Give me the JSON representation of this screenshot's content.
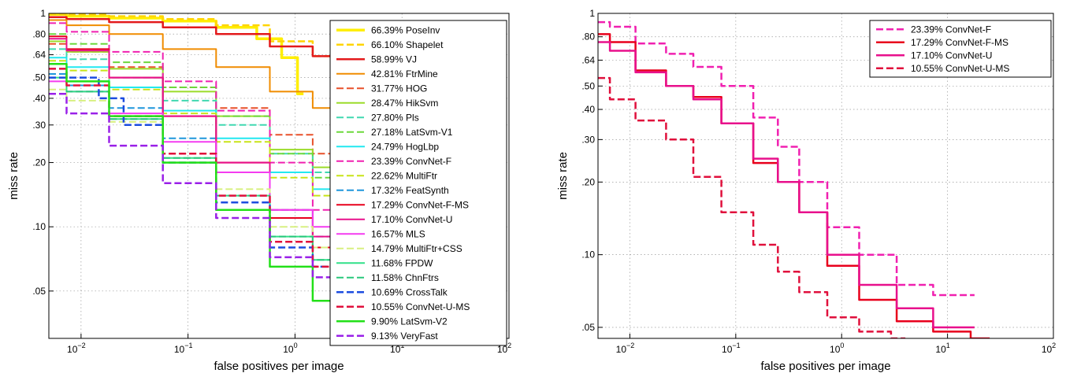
{
  "chart_data": [
    {
      "type": "line",
      "title": "",
      "xlabel": "false positives per image",
      "ylabel": "miss rate",
      "xscale": "log",
      "yscale": "log",
      "xlim": [
        0.005,
        100
      ],
      "ylim": [
        0.03,
        1
      ],
      "xticks": [
        {
          "value": 0.01,
          "base": "10",
          "exp": "−2"
        },
        {
          "value": 0.1,
          "base": "10",
          "exp": "−1"
        },
        {
          "value": 1,
          "base": "10",
          "exp": "0"
        },
        {
          "value": 10,
          "base": "10",
          "exp": "1"
        },
        {
          "value": 100,
          "base": "10",
          "exp": "2"
        }
      ],
      "yticks": [
        {
          "value": 1,
          "label": "1"
        },
        {
          "value": 0.8,
          "label": ".80"
        },
        {
          "value": 0.64,
          "label": ".64"
        },
        {
          "value": 0.5,
          "label": ".50"
        },
        {
          "value": 0.4,
          "label": ".40"
        },
        {
          "value": 0.3,
          "label": ".30"
        },
        {
          "value": 0.2,
          "label": ".20"
        },
        {
          "value": 0.1,
          "label": ".10"
        },
        {
          "value": 0.05,
          "label": ".05"
        }
      ],
      "grid": true,
      "legend_position": "right",
      "series": [
        {
          "name": "66.39% PoseInv",
          "color": "#ffee00",
          "dash": false,
          "width": 3.5,
          "x": [
            0.005,
            0.01,
            0.03,
            0.1,
            0.3,
            0.6,
            0.9,
            1.2
          ],
          "y": [
            0.99,
            0.97,
            0.95,
            0.92,
            0.86,
            0.76,
            0.62,
            0.42
          ]
        },
        {
          "name": "66.10% Shapelet",
          "color": "#ffd400",
          "dash": true,
          "width": 2.5,
          "x": [
            0.005,
            0.01,
            0.03,
            0.1,
            0.3,
            1,
            2,
            3.5
          ],
          "y": [
            0.995,
            0.985,
            0.97,
            0.94,
            0.88,
            0.74,
            0.63,
            0.56
          ]
        },
        {
          "name": "58.99% VJ",
          "color": "#e31a1c",
          "dash": false,
          "width": 2.5,
          "x": [
            0.005,
            0.01,
            0.03,
            0.1,
            0.3,
            1,
            2,
            3
          ],
          "y": [
            0.96,
            0.94,
            0.91,
            0.86,
            0.8,
            0.7,
            0.63,
            0.59
          ]
        },
        {
          "name": "42.81% FtrMine",
          "color": "#f08c00",
          "dash": false,
          "width": 2,
          "x": [
            0.005,
            0.01,
            0.03,
            0.1,
            0.3,
            1,
            2,
            3
          ],
          "y": [
            0.93,
            0.88,
            0.8,
            0.68,
            0.56,
            0.43,
            0.36,
            0.32
          ]
        },
        {
          "name": "31.77% HOG",
          "color": "#e8502a",
          "dash": true,
          "width": 2,
          "x": [
            0.005,
            0.01,
            0.03,
            0.1,
            0.3,
            1,
            2,
            3
          ],
          "y": [
            0.72,
            0.66,
            0.56,
            0.45,
            0.36,
            0.27,
            0.22,
            0.19
          ]
        },
        {
          "name": "28.47% HikSvm",
          "color": "#9cdc2a",
          "dash": false,
          "width": 2,
          "x": [
            0.005,
            0.01,
            0.03,
            0.1,
            0.3,
            1,
            2,
            3
          ],
          "y": [
            0.74,
            0.66,
            0.55,
            0.43,
            0.33,
            0.23,
            0.19,
            0.17
          ]
        },
        {
          "name": "27.80% Pls",
          "color": "#40d8b0",
          "dash": true,
          "width": 2,
          "x": [
            0.005,
            0.01,
            0.03,
            0.1,
            0.3,
            1,
            2,
            3
          ],
          "y": [
            0.68,
            0.61,
            0.5,
            0.39,
            0.3,
            0.22,
            0.18,
            0.16
          ]
        },
        {
          "name": "27.18% LatSvm-V1",
          "color": "#6cd83c",
          "dash": true,
          "width": 2,
          "x": [
            0.005,
            0.01,
            0.03,
            0.1,
            0.3,
            1,
            2,
            3
          ],
          "y": [
            0.8,
            0.72,
            0.59,
            0.45,
            0.33,
            0.22,
            0.17,
            0.15
          ]
        },
        {
          "name": "24.79% HogLbp",
          "color": "#22e8f0",
          "dash": false,
          "width": 2,
          "x": [
            0.005,
            0.01,
            0.03,
            0.1,
            0.3,
            1,
            2,
            3
          ],
          "y": [
            0.62,
            0.56,
            0.45,
            0.35,
            0.26,
            0.18,
            0.15,
            0.13
          ]
        },
        {
          "name": "23.39% ConvNet-F",
          "color": "#f020b0",
          "dash": true,
          "width": 2,
          "x": [
            0.005,
            0.01,
            0.03,
            0.1,
            0.3,
            1,
            2,
            3
          ],
          "y": [
            0.9,
            0.82,
            0.66,
            0.48,
            0.35,
            0.2,
            0.12,
            0.1
          ]
        },
        {
          "name": "22.62% MultiFtr",
          "color": "#c8e418",
          "dash": true,
          "width": 2,
          "x": [
            0.005,
            0.01,
            0.03,
            0.1,
            0.3,
            1,
            2,
            3
          ],
          "y": [
            0.6,
            0.54,
            0.44,
            0.34,
            0.25,
            0.17,
            0.14,
            0.12
          ]
        },
        {
          "name": "17.32% FeatSynth",
          "color": "#1f96dc",
          "dash": true,
          "width": 2,
          "x": [
            0.005,
            0.01,
            0.03,
            0.1,
            0.3,
            1,
            2,
            3
          ],
          "y": [
            0.52,
            0.46,
            0.36,
            0.26,
            0.18,
            0.12,
            0.09,
            0.08
          ]
        },
        {
          "name": "17.29% ConvNet-F-MS",
          "color": "#e8001c",
          "dash": false,
          "width": 2,
          "x": [
            0.005,
            0.01,
            0.03,
            0.1,
            0.3,
            1,
            2,
            3
          ],
          "y": [
            0.78,
            0.68,
            0.5,
            0.33,
            0.2,
            0.11,
            0.08,
            0.07
          ]
        },
        {
          "name": "17.10% ConvNet-U",
          "color": "#e8108c",
          "dash": false,
          "width": 2,
          "x": [
            0.005,
            0.01,
            0.03,
            0.1,
            0.3,
            1,
            2,
            3
          ],
          "y": [
            0.76,
            0.67,
            0.5,
            0.33,
            0.2,
            0.12,
            0.09,
            0.08
          ]
        },
        {
          "name": "16.57% MLS",
          "color": "#f43cf0",
          "dash": false,
          "width": 2,
          "x": [
            0.005,
            0.01,
            0.03,
            0.1,
            0.3,
            1,
            2,
            3
          ],
          "y": [
            0.48,
            0.43,
            0.34,
            0.25,
            0.18,
            0.12,
            0.1,
            0.09
          ]
        },
        {
          "name": "14.79% MultiFtr+CSS",
          "color": "#d8f080",
          "dash": true,
          "width": 2,
          "x": [
            0.005,
            0.01,
            0.03,
            0.1,
            0.3,
            1,
            2,
            3
          ],
          "y": [
            0.44,
            0.39,
            0.31,
            0.22,
            0.15,
            0.1,
            0.08,
            0.07
          ]
        },
        {
          "name": "11.68% FPDW",
          "color": "#30e088",
          "dash": false,
          "width": 2,
          "x": [
            0.005,
            0.01,
            0.03,
            0.1,
            0.3,
            1,
            2,
            3
          ],
          "y": [
            0.5,
            0.43,
            0.32,
            0.21,
            0.14,
            0.09,
            0.07,
            0.06
          ]
        },
        {
          "name": "11.58% ChnFtrs",
          "color": "#28c87c",
          "dash": true,
          "width": 2,
          "x": [
            0.005,
            0.01,
            0.03,
            0.1,
            0.3,
            1,
            2,
            3
          ],
          "y": [
            0.5,
            0.43,
            0.32,
            0.21,
            0.14,
            0.09,
            0.07,
            0.06
          ]
        },
        {
          "name": "10.69% CrossTalk",
          "color": "#1c4ce0",
          "dash": true,
          "width": 2.5,
          "x": [
            0.005,
            0.01,
            0.02,
            0.03,
            0.1,
            0.3,
            1,
            2,
            3
          ],
          "y": [
            0.5,
            0.5,
            0.4,
            0.3,
            0.2,
            0.13,
            0.08,
            0.065,
            0.055
          ]
        },
        {
          "name": "10.55% ConvNet-U-MS",
          "color": "#e0103c",
          "dash": true,
          "width": 2.5,
          "x": [
            0.005,
            0.01,
            0.03,
            0.1,
            0.3,
            1,
            2,
            3
          ],
          "y": [
            0.55,
            0.46,
            0.33,
            0.22,
            0.14,
            0.085,
            0.065,
            0.055
          ]
        },
        {
          "name": "9.90% LatSvm-V2",
          "color": "#22e018",
          "dash": false,
          "width": 2.5,
          "x": [
            0.005,
            0.01,
            0.03,
            0.1,
            0.3,
            1,
            2,
            3,
            4
          ],
          "y": [
            0.58,
            0.48,
            0.33,
            0.2,
            0.12,
            0.065,
            0.045,
            0.037,
            0.031
          ]
        },
        {
          "name": "9.13% VeryFast",
          "color": "#9a20e8",
          "dash": true,
          "width": 2.5,
          "x": [
            0.005,
            0.01,
            0.03,
            0.1,
            0.3,
            1,
            2,
            3
          ],
          "y": [
            0.42,
            0.34,
            0.24,
            0.16,
            0.11,
            0.072,
            0.058,
            0.05
          ]
        }
      ]
    },
    {
      "type": "line",
      "title": "",
      "xlabel": "false positives per image",
      "ylabel": "miss rate",
      "xscale": "log",
      "yscale": "log",
      "xlim": [
        0.005,
        100
      ],
      "ylim": [
        0.045,
        1
      ],
      "xticks": [
        {
          "value": 0.01,
          "base": "10",
          "exp": "−2"
        },
        {
          "value": 0.1,
          "base": "10",
          "exp": "−1"
        },
        {
          "value": 1,
          "base": "10",
          "exp": "0"
        },
        {
          "value": 10,
          "base": "10",
          "exp": "1"
        },
        {
          "value": 100,
          "base": "10",
          "exp": "2"
        }
      ],
      "yticks": [
        {
          "value": 1,
          "label": "1"
        },
        {
          "value": 0.8,
          "label": ".80"
        },
        {
          "value": 0.64,
          "label": ".64"
        },
        {
          "value": 0.5,
          "label": ".50"
        },
        {
          "value": 0.4,
          "label": ".40"
        },
        {
          "value": 0.3,
          "label": ".30"
        },
        {
          "value": 0.2,
          "label": ".20"
        },
        {
          "value": 0.1,
          "label": ".10"
        },
        {
          "value": 0.05,
          "label": ".05"
        }
      ],
      "grid": true,
      "legend_position": "top-right",
      "series": [
        {
          "name": "23.39% ConvNet-F",
          "color": "#f020b0",
          "dash": true,
          "width": 2.5,
          "x": [
            0.005,
            0.008,
            0.015,
            0.03,
            0.05,
            0.1,
            0.2,
            0.3,
            0.5,
            1,
            2,
            5,
            10,
            18
          ],
          "y": [
            0.92,
            0.88,
            0.75,
            0.68,
            0.6,
            0.5,
            0.37,
            0.28,
            0.2,
            0.13,
            0.1,
            0.075,
            0.068,
            0.068
          ]
        },
        {
          "name": "17.29% ConvNet-F-MS",
          "color": "#e8001c",
          "dash": false,
          "width": 2.5,
          "x": [
            0.005,
            0.008,
            0.015,
            0.03,
            0.05,
            0.1,
            0.2,
            0.3,
            0.5,
            1,
            2,
            5,
            10,
            25
          ],
          "y": [
            0.82,
            0.76,
            0.58,
            0.5,
            0.45,
            0.35,
            0.24,
            0.2,
            0.15,
            0.09,
            0.065,
            0.053,
            0.048,
            0.045
          ]
        },
        {
          "name": "17.10% ConvNet-U",
          "color": "#e8108c",
          "dash": false,
          "width": 2.5,
          "x": [
            0.005,
            0.008,
            0.015,
            0.03,
            0.05,
            0.1,
            0.2,
            0.3,
            0.5,
            1,
            2,
            5,
            10,
            18
          ],
          "y": [
            0.76,
            0.7,
            0.57,
            0.5,
            0.44,
            0.35,
            0.25,
            0.2,
            0.15,
            0.1,
            0.075,
            0.06,
            0.05,
            0.05
          ]
        },
        {
          "name": "10.55% ConvNet-U-MS",
          "color": "#e0103c",
          "dash": true,
          "width": 2.5,
          "x": [
            0.005,
            0.008,
            0.015,
            0.03,
            0.05,
            0.1,
            0.2,
            0.3,
            0.5,
            1,
            2,
            4
          ],
          "y": [
            0.54,
            0.44,
            0.36,
            0.3,
            0.21,
            0.15,
            0.11,
            0.085,
            0.07,
            0.055,
            0.048,
            0.045
          ]
        }
      ]
    }
  ]
}
